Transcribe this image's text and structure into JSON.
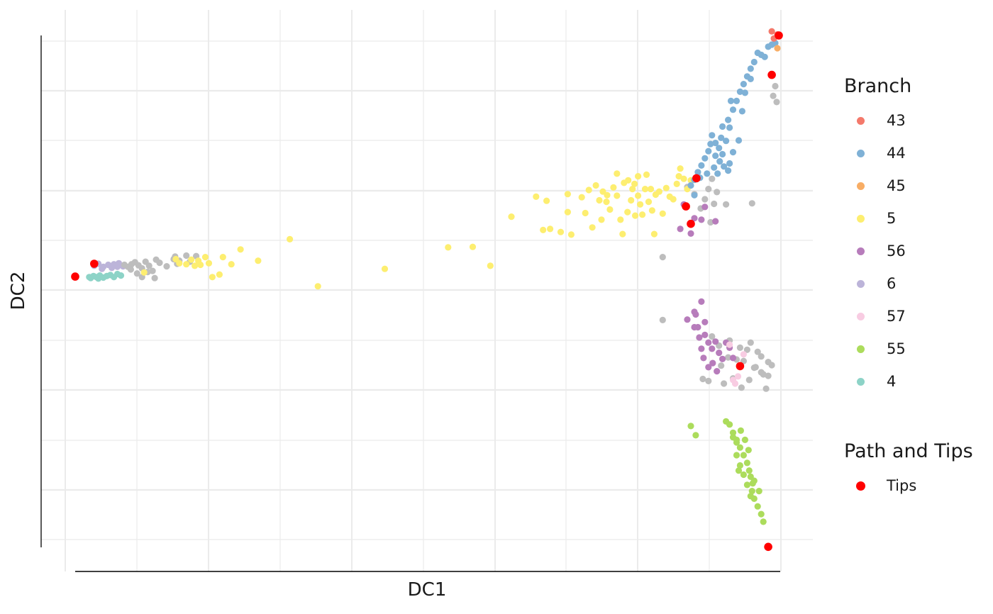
{
  "chart_data": {
    "type": "scatter",
    "xlabel": "DC1",
    "ylabel": "DC2",
    "grid": true,
    "legend_placement": "right",
    "legends": [
      {
        "title": "Branch",
        "entries": [
          {
            "label": "43",
            "color": "#f4796b"
          },
          {
            "label": "44",
            "color": "#7fb1d6"
          },
          {
            "label": "45",
            "color": "#f8ad65"
          },
          {
            "label": "5",
            "color": "#fdee70"
          },
          {
            "label": "56",
            "color": "#b77cbb"
          },
          {
            "label": "6",
            "color": "#bcb4d9"
          },
          {
            "label": "57",
            "color": "#f8cce2"
          },
          {
            "label": "55",
            "color": "#acdc5c"
          },
          {
            "label": "4",
            "color": "#8dd3c7"
          }
        ]
      },
      {
        "title": "Path and Tips",
        "entries": [
          {
            "label": "Tips",
            "color": "#ff0000"
          }
        ]
      }
    ],
    "path_color": "#bdbdbd",
    "series": [
      {
        "branch": "4",
        "color": "#8dd3c7",
        "points": [
          [
            0.02,
            0.472
          ],
          [
            0.026,
            0.47
          ],
          [
            0.03,
            0.472
          ],
          [
            0.035,
            0.469
          ],
          [
            0.04,
            0.473
          ],
          [
            0.045,
            0.47
          ],
          [
            0.05,
            0.468
          ],
          [
            0.055,
            0.472
          ],
          [
            0.06,
            0.466
          ],
          [
            0.065,
            0.469
          ],
          [
            0.022,
            0.474
          ],
          [
            0.033,
            0.475
          ]
        ]
      },
      {
        "branch": "6",
        "color": "#bcb4d9",
        "points": [
          [
            0.027,
            0.45
          ],
          [
            0.033,
            0.446
          ],
          [
            0.04,
            0.452
          ],
          [
            0.047,
            0.448
          ],
          [
            0.055,
            0.447
          ],
          [
            0.062,
            0.445
          ],
          [
            0.068,
            0.451
          ],
          [
            0.052,
            0.454
          ],
          [
            0.038,
            0.456
          ],
          [
            0.06,
            0.452
          ]
        ]
      },
      {
        "branch": "path",
        "color": "#bdbdbd",
        "points": [
          [
            0.07,
            0.448
          ],
          [
            0.075,
            0.452
          ],
          [
            0.08,
            0.447
          ],
          [
            0.085,
            0.443
          ],
          [
            0.09,
            0.449
          ],
          [
            0.095,
            0.455
          ],
          [
            0.1,
            0.442
          ],
          [
            0.105,
            0.45
          ],
          [
            0.11,
            0.46
          ],
          [
            0.115,
            0.438
          ],
          [
            0.12,
            0.444
          ],
          [
            0.13,
            0.451
          ],
          [
            0.14,
            0.437
          ],
          [
            0.145,
            0.446
          ],
          [
            0.088,
            0.465
          ],
          [
            0.095,
            0.472
          ],
          [
            0.113,
            0.474
          ],
          [
            0.142,
            0.432
          ],
          [
            0.172,
            0.431
          ],
          [
            0.163,
            0.442
          ],
          [
            0.148,
            0.44
          ],
          [
            0.079,
            0.457
          ],
          [
            0.103,
            0.462
          ],
          [
            0.158,
            0.43
          ],
          [
            0.835,
            0.433
          ],
          [
            0.9,
            0.3
          ],
          [
            0.895,
            0.32
          ],
          [
            0.905,
            0.28
          ],
          [
            0.88,
            0.31
          ],
          [
            0.87,
            0.296
          ],
          [
            0.889,
            0.338
          ],
          [
            0.912,
            0.306
          ],
          [
            0.903,
            0.365
          ],
          [
            0.908,
            0.329
          ],
          [
            0.925,
            0.33
          ],
          [
            0.962,
            0.328
          ],
          [
            0.997,
            0.13
          ],
          [
            0.992,
            0.118
          ],
          [
            0.995,
            0.099
          ],
          [
            0.835,
            0.556
          ],
          [
            0.905,
            0.588
          ],
          [
            0.915,
            0.606
          ],
          [
            0.93,
            0.596
          ],
          [
            0.945,
            0.61
          ],
          [
            0.955,
            0.614
          ],
          [
            0.97,
            0.618
          ],
          [
            0.96,
            0.6
          ],
          [
            0.975,
            0.627
          ],
          [
            0.985,
            0.638
          ],
          [
            0.99,
            0.644
          ],
          [
            0.985,
            0.665
          ],
          [
            0.975,
            0.658
          ],
          [
            0.965,
            0.649
          ],
          [
            0.95,
            0.636
          ],
          [
            0.94,
            0.633
          ],
          [
            0.928,
            0.629
          ],
          [
            0.918,
            0.645
          ],
          [
            0.9,
            0.675
          ],
          [
            0.892,
            0.671
          ],
          [
            0.935,
            0.67
          ],
          [
            0.922,
            0.68
          ],
          [
            0.947,
            0.688
          ],
          [
            0.958,
            0.673
          ],
          [
            0.967,
            0.648
          ],
          [
            0.978,
            0.662
          ],
          [
            0.982,
            0.69
          ]
        ]
      },
      {
        "branch": "5",
        "color": "#fdee70",
        "points": [
          [
            0.098,
            0.463
          ],
          [
            0.143,
            0.437
          ],
          [
            0.148,
            0.445
          ],
          [
            0.158,
            0.447
          ],
          [
            0.165,
            0.438
          ],
          [
            0.17,
            0.45
          ],
          [
            0.175,
            0.44
          ],
          [
            0.178,
            0.448
          ],
          [
            0.185,
            0.433
          ],
          [
            0.19,
            0.445
          ],
          [
            0.195,
            0.472
          ],
          [
            0.205,
            0.467
          ],
          [
            0.21,
            0.433
          ],
          [
            0.222,
            0.447
          ],
          [
            0.235,
            0.418
          ],
          [
            0.26,
            0.44
          ],
          [
            0.305,
            0.398
          ],
          [
            0.345,
            0.49
          ],
          [
            0.44,
            0.456
          ],
          [
            0.53,
            0.414
          ],
          [
            0.565,
            0.413
          ],
          [
            0.59,
            0.45
          ],
          [
            0.62,
            0.354
          ],
          [
            0.655,
            0.315
          ],
          [
            0.665,
            0.38
          ],
          [
            0.675,
            0.378
          ],
          [
            0.67,
            0.323
          ],
          [
            0.69,
            0.384
          ],
          [
            0.7,
            0.345
          ],
          [
            0.705,
            0.389
          ],
          [
            0.7,
            0.31
          ],
          [
            0.72,
            0.316
          ],
          [
            0.725,
            0.347
          ],
          [
            0.73,
            0.302
          ],
          [
            0.735,
            0.375
          ],
          [
            0.74,
            0.293
          ],
          [
            0.745,
            0.322
          ],
          [
            0.748,
            0.36
          ],
          [
            0.75,
            0.305
          ],
          [
            0.755,
            0.325
          ],
          [
            0.76,
            0.34
          ],
          [
            0.765,
            0.297
          ],
          [
            0.77,
            0.313
          ],
          [
            0.775,
            0.36
          ],
          [
            0.778,
            0.388
          ],
          [
            0.78,
            0.288
          ],
          [
            0.785,
            0.345
          ],
          [
            0.79,
            0.322
          ],
          [
            0.792,
            0.3
          ],
          [
            0.795,
            0.29
          ],
          [
            0.8,
            0.313
          ],
          [
            0.803,
            0.33
          ],
          [
            0.806,
            0.35
          ],
          [
            0.81,
            0.3
          ],
          [
            0.815,
            0.325
          ],
          [
            0.82,
            0.342
          ],
          [
            0.825,
            0.311
          ],
          [
            0.83,
            0.305
          ],
          [
            0.835,
            0.348
          ],
          [
            0.84,
            0.298
          ],
          [
            0.845,
            0.315
          ],
          [
            0.85,
            0.32
          ],
          [
            0.855,
            0.29
          ],
          [
            0.858,
            0.275
          ],
          [
            0.86,
            0.26
          ],
          [
            0.865,
            0.28
          ],
          [
            0.87,
            0.3
          ],
          [
            0.875,
            0.283
          ],
          [
            0.786,
            0.283
          ],
          [
            0.77,
            0.27
          ],
          [
            0.8,
            0.275
          ],
          [
            0.812,
            0.272
          ],
          [
            0.818,
            0.3
          ],
          [
            0.823,
            0.388
          ],
          [
            0.796,
            0.352
          ],
          [
            0.756,
            0.312
          ]
        ]
      },
      {
        "branch": "44",
        "color": "#7fb1d6",
        "points": [
          [
            0.875,
            0.293
          ],
          [
            0.88,
            0.282
          ],
          [
            0.885,
            0.267
          ],
          [
            0.89,
            0.254
          ],
          [
            0.895,
            0.24
          ],
          [
            0.9,
            0.226
          ],
          [
            0.903,
            0.212
          ],
          [
            0.905,
            0.195
          ],
          [
            0.91,
            0.21
          ],
          [
            0.915,
            0.22
          ],
          [
            0.918,
            0.2
          ],
          [
            0.92,
            0.232
          ],
          [
            0.925,
            0.206
          ],
          [
            0.93,
            0.18
          ],
          [
            0.928,
            0.165
          ],
          [
            0.935,
            0.145
          ],
          [
            0.94,
            0.128
          ],
          [
            0.945,
            0.11
          ],
          [
            0.95,
            0.095
          ],
          [
            0.955,
            0.08
          ],
          [
            0.96,
            0.065
          ],
          [
            0.965,
            0.052
          ],
          [
            0.97,
            0.034
          ],
          [
            0.975,
            0.038
          ],
          [
            0.98,
            0.042
          ],
          [
            0.985,
            0.022
          ],
          [
            0.99,
            0.018
          ],
          [
            0.995,
            0.015
          ],
          [
            0.91,
            0.235
          ],
          [
            0.916,
            0.246
          ],
          [
            0.922,
            0.256
          ],
          [
            0.928,
            0.264
          ],
          [
            0.88,
            0.312
          ],
          [
            0.888,
            0.278
          ],
          [
            0.898,
            0.27
          ],
          [
            0.908,
            0.258
          ],
          [
            0.93,
            0.25
          ],
          [
            0.935,
            0.228
          ],
          [
            0.943,
            0.205
          ],
          [
            0.913,
            0.27
          ],
          [
            0.92,
            0.178
          ],
          [
            0.932,
            0.128
          ],
          [
            0.948,
            0.148
          ],
          [
            0.952,
            0.112
          ],
          [
            0.96,
            0.085
          ]
        ]
      },
      {
        "branch": "43",
        "color": "#f4796b",
        "points": [
          [
            0.99,
            -0.008
          ],
          [
            0.993,
            0.006
          ],
          [
            0.998,
            -0.002
          ]
        ]
      },
      {
        "branch": "45",
        "color": "#f8ad65",
        "points": [
          [
            0.998,
            0.025
          ]
        ]
      },
      {
        "branch": "56",
        "color": "#b77cbb",
        "points": [
          [
            0.86,
            0.378
          ],
          [
            0.875,
            0.387
          ],
          [
            0.89,
            0.36
          ],
          [
            0.895,
            0.335
          ],
          [
            0.91,
            0.363
          ],
          [
            0.88,
            0.357
          ],
          [
            0.865,
            0.33
          ],
          [
            0.87,
            0.555
          ],
          [
            0.88,
            0.54
          ],
          [
            0.882,
            0.545
          ],
          [
            0.885,
            0.57
          ],
          [
            0.89,
            0.52
          ],
          [
            0.895,
            0.585
          ],
          [
            0.9,
            0.6
          ],
          [
            0.905,
            0.612
          ],
          [
            0.91,
            0.598
          ],
          [
            0.915,
            0.62
          ],
          [
            0.92,
            0.632
          ],
          [
            0.925,
            0.6
          ],
          [
            0.93,
            0.61
          ],
          [
            0.935,
            0.63
          ],
          [
            0.89,
            0.612
          ],
          [
            0.893,
            0.63
          ],
          [
            0.9,
            0.648
          ],
          [
            0.906,
            0.64
          ],
          [
            0.912,
            0.656
          ],
          [
            0.88,
            0.57
          ],
          [
            0.887,
            0.59
          ],
          [
            0.895,
            0.56
          ]
        ]
      },
      {
        "branch": "57",
        "color": "#f8cce2",
        "points": [
          [
            0.93,
            0.604
          ],
          [
            0.95,
            0.623
          ],
          [
            0.935,
            0.673
          ],
          [
            0.942,
            0.666
          ],
          [
            0.938,
            0.68
          ]
        ]
      },
      {
        "branch": "55",
        "color": "#acdc5c",
        "points": [
          [
            0.875,
            0.763
          ],
          [
            0.882,
            0.781
          ],
          [
            0.925,
            0.754
          ],
          [
            0.93,
            0.76
          ],
          [
            0.935,
            0.776
          ],
          [
            0.94,
            0.79
          ],
          [
            0.945,
            0.805
          ],
          [
            0.95,
            0.82
          ],
          [
            0.955,
            0.835
          ],
          [
            0.958,
            0.85
          ],
          [
            0.96,
            0.862
          ],
          [
            0.963,
            0.875
          ],
          [
            0.962,
            0.89
          ],
          [
            0.965,
            0.905
          ],
          [
            0.97,
            0.92
          ],
          [
            0.975,
            0.935
          ],
          [
            0.978,
            0.95
          ],
          [
            0.94,
            0.82
          ],
          [
            0.945,
            0.84
          ],
          [
            0.95,
            0.858
          ],
          [
            0.955,
            0.878
          ],
          [
            0.96,
            0.9
          ],
          [
            0.935,
            0.785
          ],
          [
            0.94,
            0.795
          ],
          [
            0.946,
            0.772
          ],
          [
            0.952,
            0.79
          ],
          [
            0.957,
            0.81
          ],
          [
            0.943,
            0.85
          ],
          [
            0.965,
            0.87
          ],
          [
            0.972,
            0.89
          ]
        ]
      },
      {
        "branch": "Tips",
        "color": "#ff0000",
        "points": [
          [
            0.0,
            0.471
          ],
          [
            0.027,
            0.446
          ],
          [
            0.883,
            0.279
          ],
          [
            0.868,
            0.334
          ],
          [
            0.875,
            0.368
          ],
          [
            0.99,
            0.077
          ],
          [
            1.0,
            0.0
          ],
          [
            0.945,
            0.646
          ],
          [
            0.985,
            0.999
          ]
        ]
      }
    ]
  }
}
